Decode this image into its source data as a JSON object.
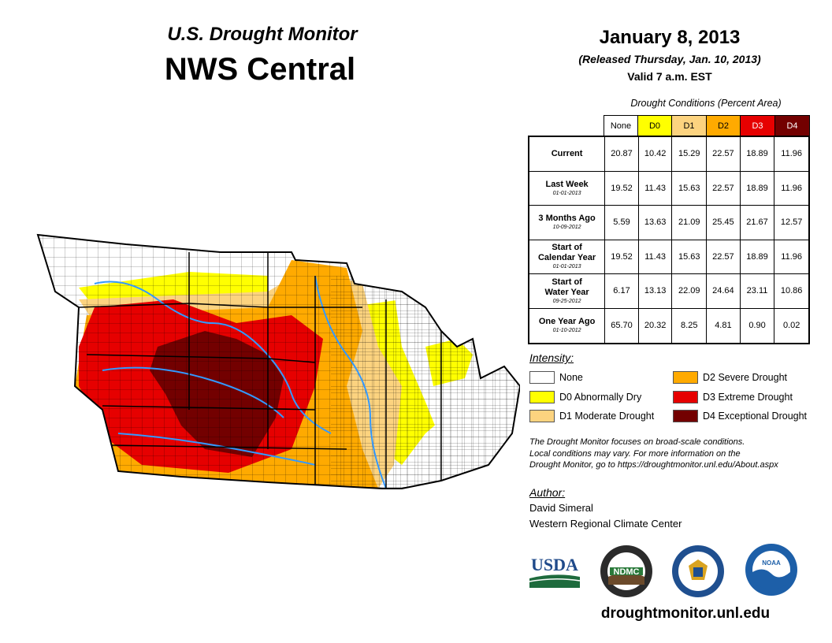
{
  "header": {
    "subtitle": "U.S. Drought Monitor",
    "region": "NWS Central"
  },
  "date_block": {
    "date": "January 8, 2013",
    "released": "(Released Thursday, Jan. 10, 2013)",
    "valid": "Valid 7 a.m. EST"
  },
  "table": {
    "caption": "Drought Conditions (Percent Area)",
    "columns": [
      "None",
      "D0",
      "D1",
      "D2",
      "D3",
      "D4"
    ],
    "column_colors": [
      "#ffffff",
      "#ffff00",
      "#fcd37f",
      "#ffaa00",
      "#e60000",
      "#730000"
    ],
    "rows": [
      {
        "label": "Current",
        "date": "",
        "values": [
          "20.87",
          "10.42",
          "15.29",
          "22.57",
          "18.89",
          "11.96"
        ]
      },
      {
        "label": "Last Week",
        "date": "01-01-2013",
        "values": [
          "19.52",
          "11.43",
          "15.63",
          "22.57",
          "18.89",
          "11.96"
        ]
      },
      {
        "label": "3 Months Ago",
        "date": "10-09-2012",
        "values": [
          "5.59",
          "13.63",
          "21.09",
          "25.45",
          "21.67",
          "12.57"
        ]
      },
      {
        "label": "Start of Calendar Year",
        "line1": "Start of",
        "line2": "Calendar Year",
        "date": "01-01-2013",
        "values": [
          "19.52",
          "11.43",
          "15.63",
          "22.57",
          "18.89",
          "11.96"
        ]
      },
      {
        "label": "Start of Water Year",
        "line1": "Start of",
        "line2": "Water Year",
        "date": "09-25-2012",
        "values": [
          "6.17",
          "13.13",
          "22.09",
          "24.64",
          "23.11",
          "10.86"
        ]
      },
      {
        "label": "One Year Ago",
        "date": "01-10-2012",
        "values": [
          "65.70",
          "20.32",
          "8.25",
          "4.81",
          "0.90",
          "0.02"
        ]
      }
    ]
  },
  "legend": {
    "title": "Intensity:",
    "items": [
      {
        "label": "None",
        "color": "#ffffff"
      },
      {
        "label": "D0 Abnormally Dry",
        "color": "#ffff00"
      },
      {
        "label": "D1 Moderate Drought",
        "color": "#fcd37f"
      },
      {
        "label": "D2 Severe Drought",
        "color": "#ffaa00"
      },
      {
        "label": "D3 Extreme Drought",
        "color": "#e60000"
      },
      {
        "label": "D4 Exceptional Drought",
        "color": "#730000"
      }
    ]
  },
  "note": {
    "line1": "The Drought Monitor focuses on broad-scale conditions.",
    "line2": "Local conditions may vary. For more information on the",
    "line3": "Drought Monitor, go to https://droughtmonitor.unl.edu/About.aspx"
  },
  "author": {
    "title": "Author:",
    "name": "David Simeral",
    "org": "Western Regional Climate Center"
  },
  "logos": {
    "usda": "USDA",
    "ndmc": "NDMC",
    "noaa": "NOAA"
  },
  "website": "droughtmonitor.unl.edu"
}
